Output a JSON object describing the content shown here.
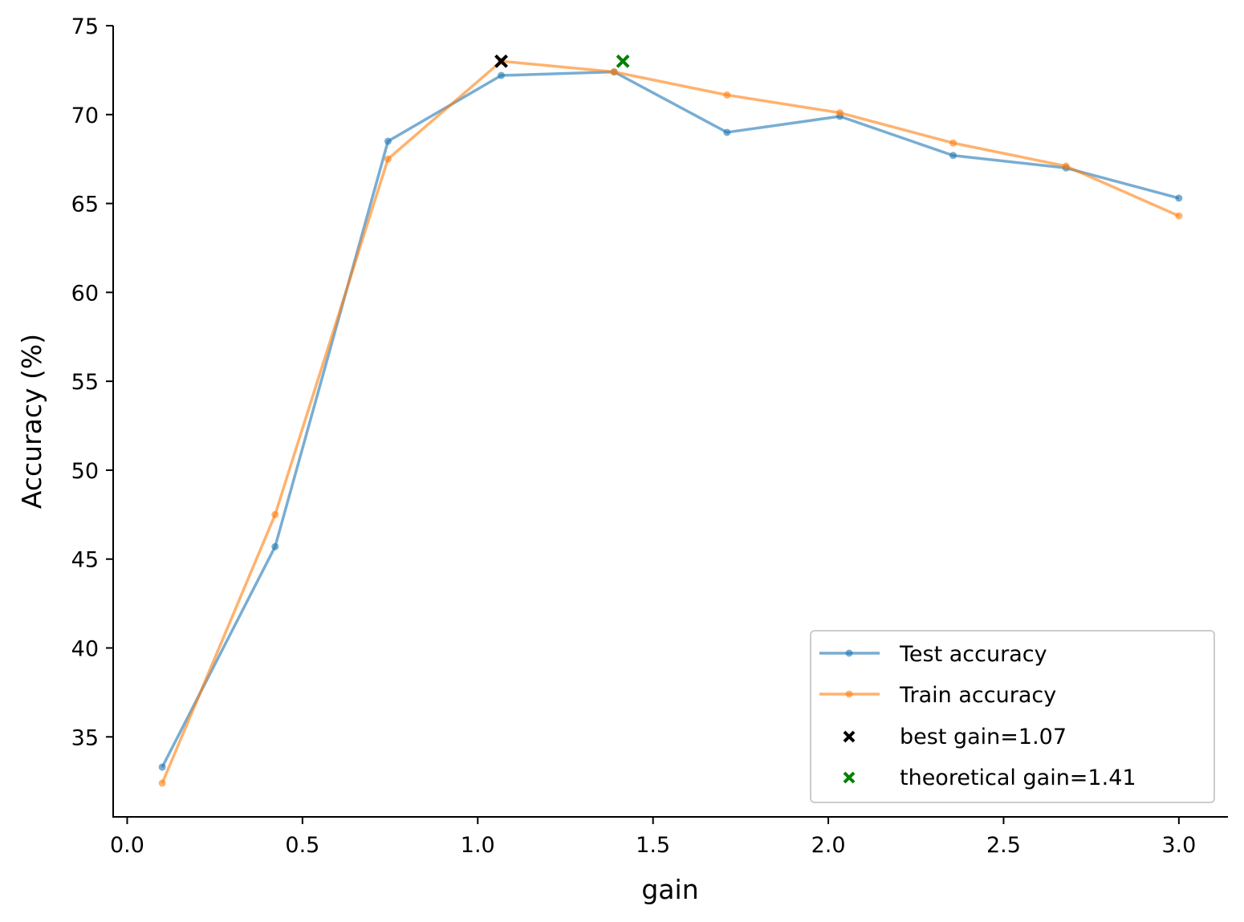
{
  "chart_data": {
    "type": "line",
    "title": "",
    "xlabel": "gain",
    "ylabel": "Accuracy (%)",
    "xlim": [
      -0.04,
      3.14
    ],
    "ylim": [
      30.5,
      75
    ],
    "xticks": [
      0.0,
      0.5,
      1.0,
      1.5,
      2.0,
      2.5,
      3.0
    ],
    "xtick_labels": [
      "0.0",
      "0.5",
      "1.0",
      "1.5",
      "2.0",
      "2.5",
      "3.0"
    ],
    "yticks": [
      35,
      40,
      45,
      50,
      55,
      60,
      65,
      70,
      75
    ],
    "ytick_labels": [
      "35",
      "40",
      "45",
      "50",
      "55",
      "60",
      "65",
      "70",
      "75"
    ],
    "grid": false,
    "legend_position": "bottom-right",
    "x": [
      0.1,
      0.422,
      0.744,
      1.067,
      1.389,
      1.711,
      2.033,
      2.356,
      2.678,
      3.0
    ],
    "series": [
      {
        "name": "Test accuracy",
        "color": "#1f77b4",
        "values": [
          33.3,
          45.7,
          68.5,
          72.2,
          72.4,
          69.0,
          69.9,
          67.7,
          67.0,
          65.3
        ]
      },
      {
        "name": "Train accuracy",
        "color": "#ff7f0e",
        "values": [
          32.4,
          47.5,
          67.5,
          73.0,
          72.4,
          71.1,
          70.1,
          68.4,
          67.1,
          64.3
        ]
      }
    ],
    "markers": [
      {
        "name": "best gain=1.07",
        "x": 1.067,
        "y": 73.0,
        "color": "#000000",
        "symbol": "x"
      },
      {
        "name": "theoretical gain=1.41",
        "x": 1.414,
        "y": 73.0,
        "color": "#008000",
        "symbol": "x"
      }
    ]
  }
}
